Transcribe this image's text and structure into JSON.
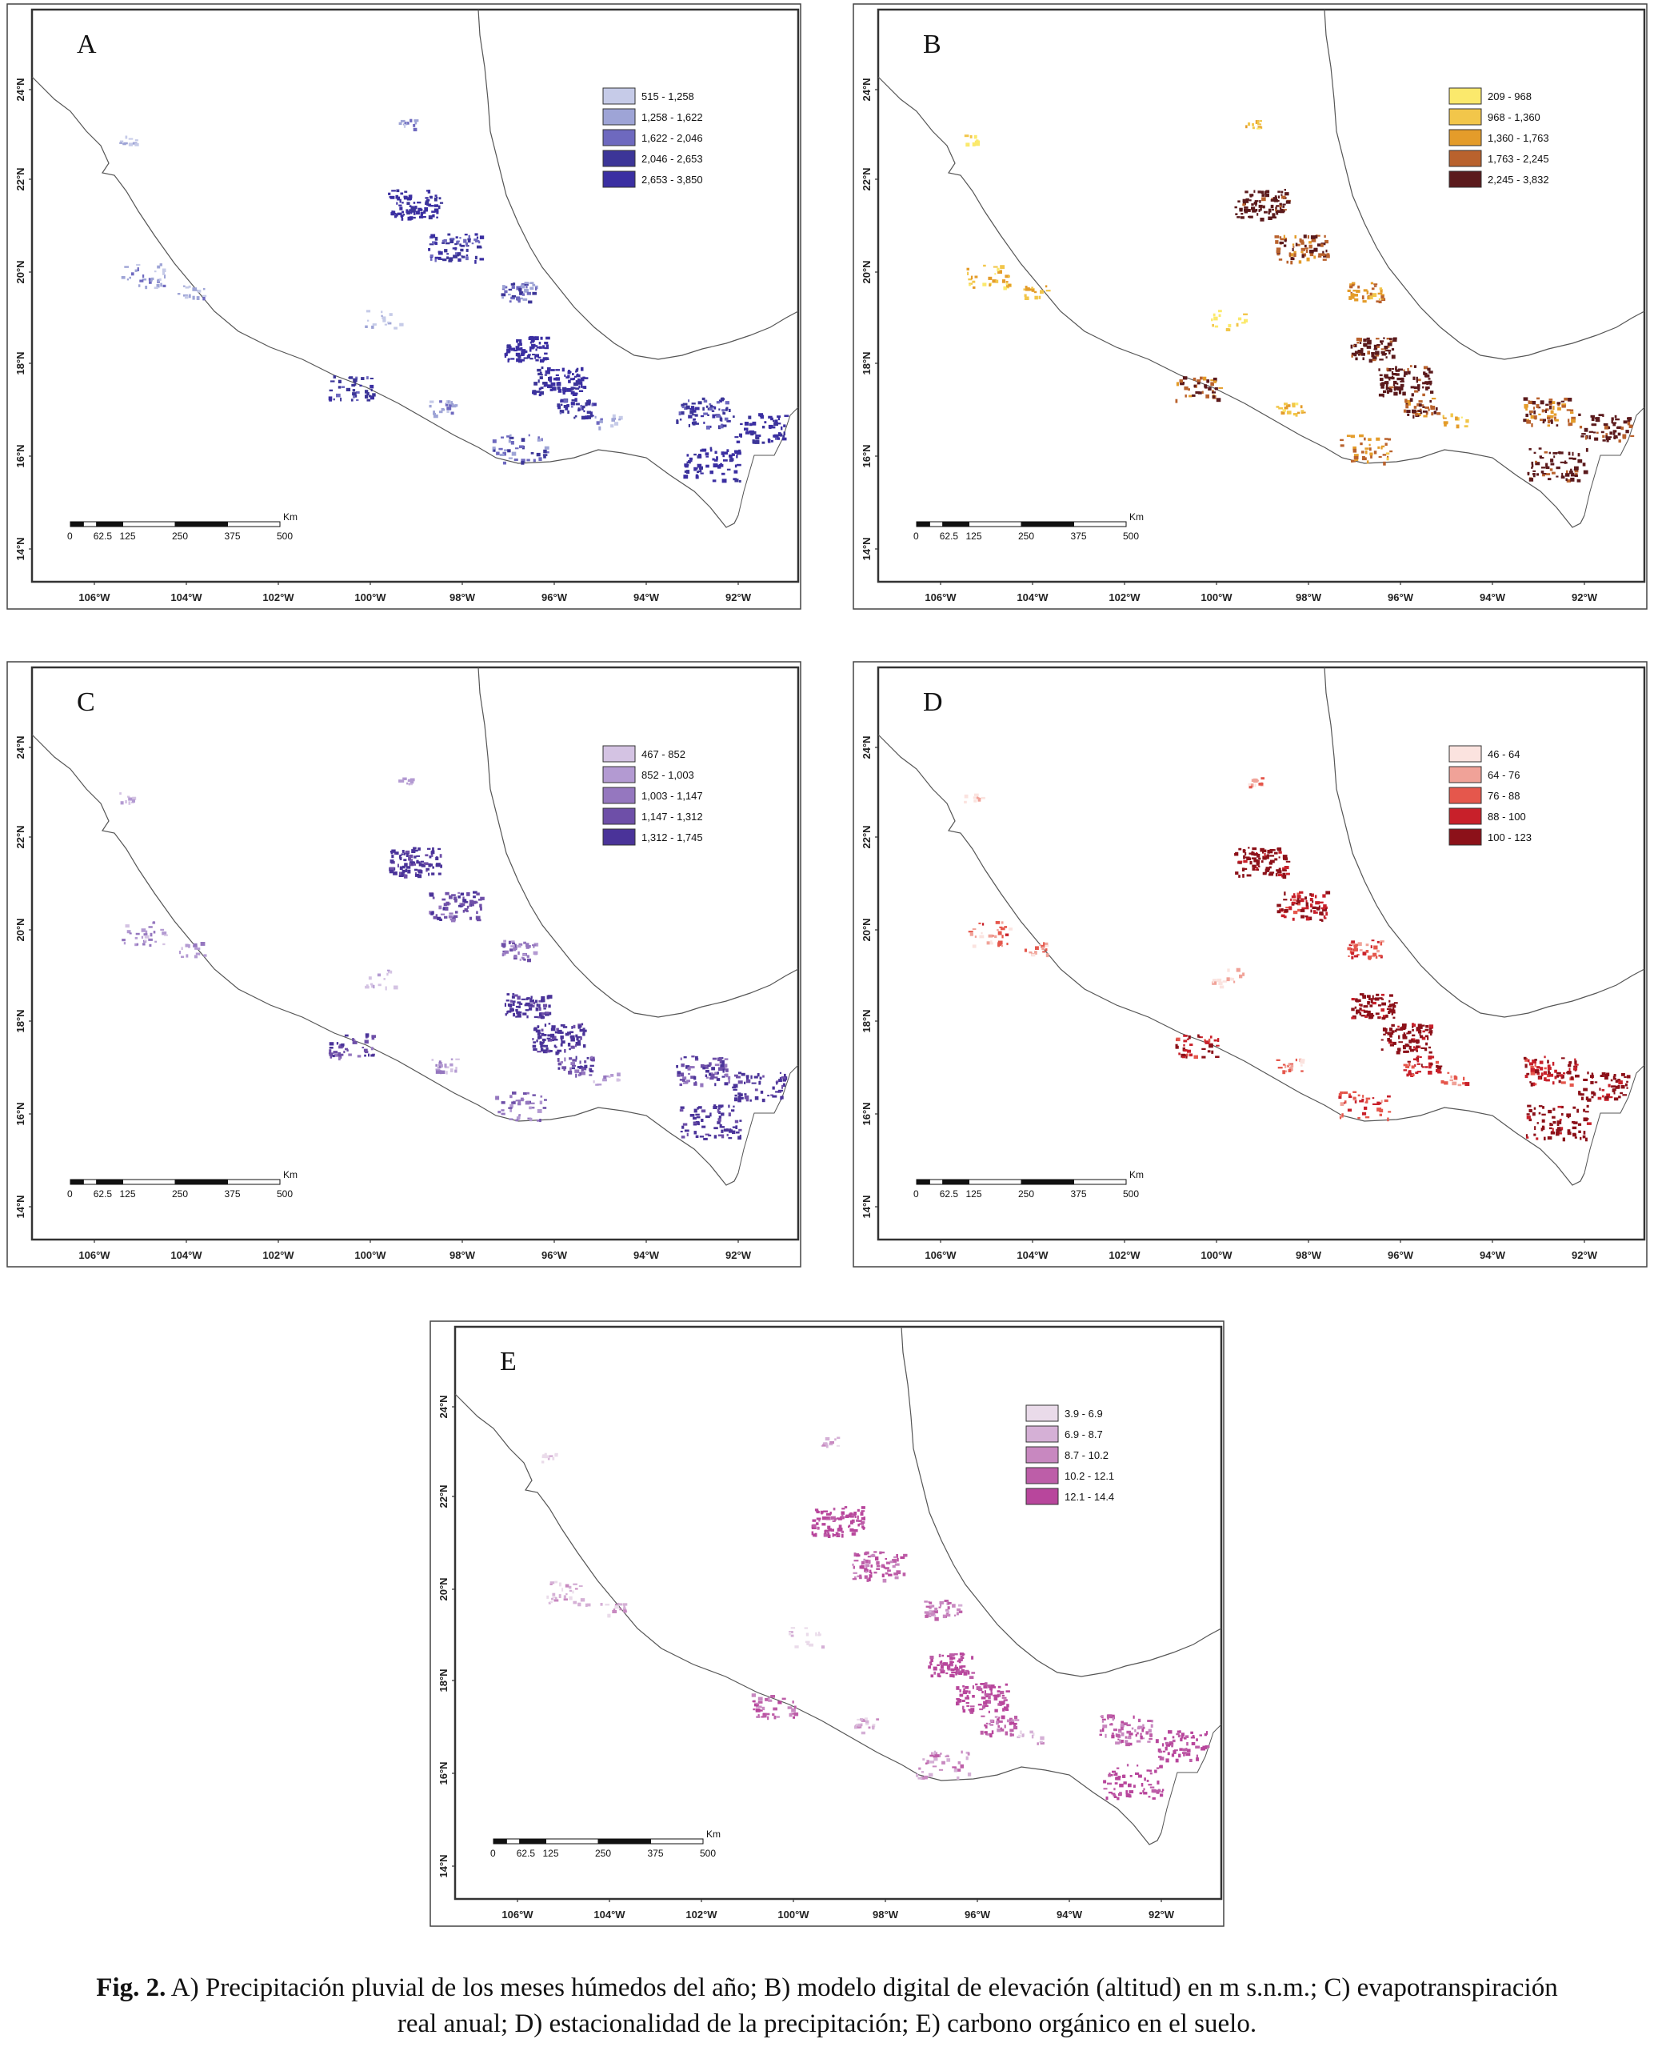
{
  "panels": [
    {
      "id": "A",
      "letter": "A",
      "legend": [
        {
          "label": "515 - 1,258",
          "color": "#c6cbe8"
        },
        {
          "label": "1,258 - 1,622",
          "color": "#9ea4d6"
        },
        {
          "label": "1,622 - 2,046",
          "color": "#6e69bf"
        },
        {
          "label": "2,046 - 2,653",
          "color": "#3c3598"
        },
        {
          "label": "2,653 - 3,850",
          "color": "#3b2fa2"
        }
      ],
      "fill_colors": [
        "#c6cbe8",
        "#9ea4d6",
        "#6e69bf",
        "#3c3598",
        "#3b2fa2"
      ]
    },
    {
      "id": "B",
      "letter": "B",
      "legend": [
        {
          "label": "209 - 968",
          "color": "#fbe96c"
        },
        {
          "label": "968 - 1,360",
          "color": "#f2c64a"
        },
        {
          "label": "1,360 - 1,763",
          "color": "#e49c2a"
        },
        {
          "label": "1,763 - 2,245",
          "color": "#b9622d"
        },
        {
          "label": "2,245 - 3,832",
          "color": "#5b1a1c"
        }
      ],
      "fill_colors": [
        "#fbe96c",
        "#f2c64a",
        "#e49c2a",
        "#b9622d",
        "#5b1a1c"
      ]
    },
    {
      "id": "C",
      "letter": "C",
      "legend": [
        {
          "label": "467 - 852",
          "color": "#d4c3e3"
        },
        {
          "label": "852 - 1,003",
          "color": "#b39ad2"
        },
        {
          "label": "1,003 - 1,147",
          "color": "#9577bf"
        },
        {
          "label": "1,147 - 1,312",
          "color": "#6e4fa8"
        },
        {
          "label": "1,312 - 1,745",
          "color": "#4a3399"
        }
      ],
      "fill_colors": [
        "#d4c3e3",
        "#b39ad2",
        "#9577bf",
        "#6e4fa8",
        "#4a3399"
      ]
    },
    {
      "id": "D",
      "letter": "D",
      "legend": [
        {
          "label": "46 - 64",
          "color": "#fbe3df"
        },
        {
          "label": "64 - 76",
          "color": "#f0a298"
        },
        {
          "label": "76 - 88",
          "color": "#e5574c"
        },
        {
          "label": "88 - 100",
          "color": "#c8202a"
        },
        {
          "label": "100 - 123",
          "color": "#8c1119"
        }
      ],
      "fill_colors": [
        "#fbe3df",
        "#f0a298",
        "#e5574c",
        "#c8202a",
        "#8c1119"
      ]
    },
    {
      "id": "E",
      "letter": "E",
      "legend": [
        {
          "label": "3.9 - 6.9",
          "color": "#eadbea"
        },
        {
          "label": "6.9 - 8.7",
          "color": "#d5b0d6"
        },
        {
          "label": "8.7 - 10.2",
          "color": "#c888c0"
        },
        {
          "label": "10.2 - 12.1",
          "color": "#bd5ea8"
        },
        {
          "label": "12.1 - 14.4",
          "color": "#b8469c"
        }
      ],
      "fill_colors": [
        "#eadbea",
        "#d5b0d6",
        "#c888c0",
        "#bd5ea8",
        "#b8469c"
      ]
    }
  ],
  "axes": {
    "lat_labels": [
      "24°N",
      "22°N",
      "20°N",
      "18°N",
      "16°N",
      "14°N"
    ],
    "lon_labels": [
      "106°W",
      "104°W",
      "102°W",
      "100°W",
      "98°W",
      "96°W",
      "94°W",
      "92°W"
    ]
  },
  "scale": {
    "unit": "Km",
    "ticks": [
      "0",
      "62.5",
      "125",
      "250",
      "375",
      "500"
    ]
  },
  "caption": {
    "fig": "Fig. 2.",
    "line1": "A) Precipitación pluvial de los meses húmedos del año; B) modelo digital de elevación (altitud) en m s.n.m.; C) evapotranspiración",
    "line2": "real anual; D) estacionalidad de la precipitación; E) carbono orgánico en el suelo."
  }
}
